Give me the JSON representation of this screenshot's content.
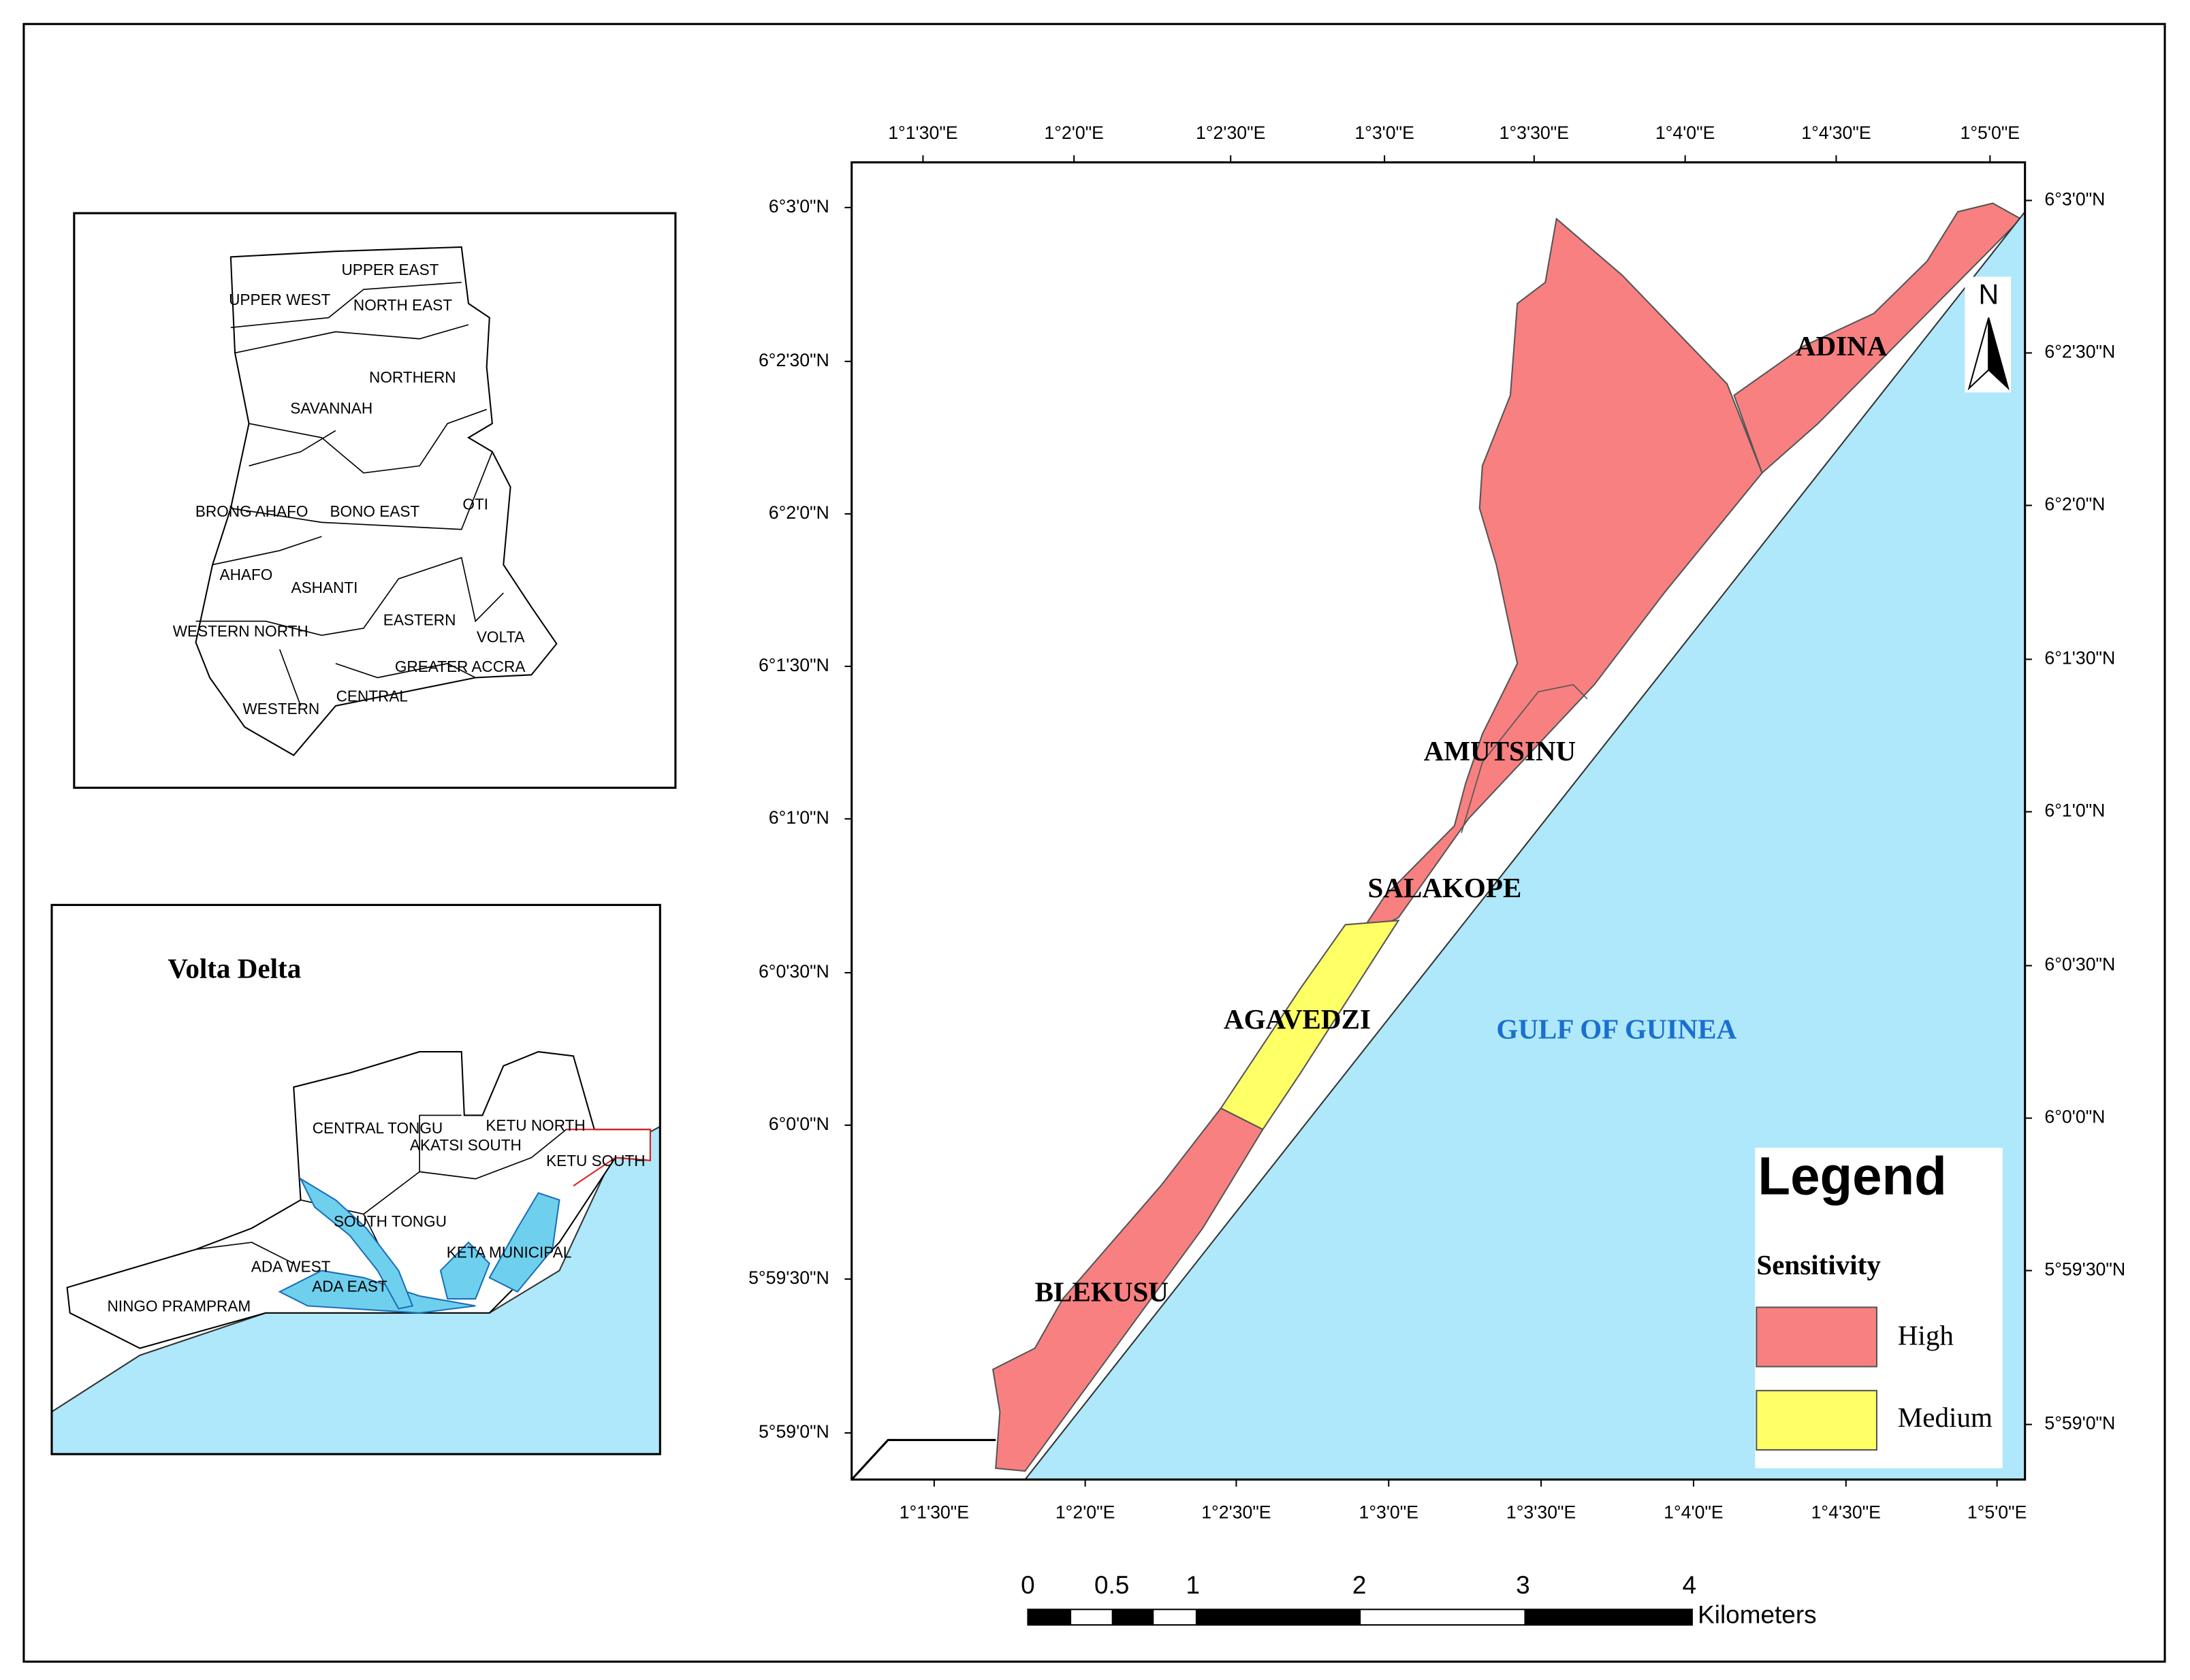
{
  "main_map": {
    "lon_labels": [
      "1°1'30\"E",
      "1°2'0\"E",
      "1°2'30\"E",
      "1°3'0\"E",
      "1°3'30\"E",
      "1°4'0\"E",
      "1°4'30\"E",
      "1°5'0\"E"
    ],
    "lat_labels": [
      "6°3'0\"N",
      "6°2'30\"N",
      "6°2'0\"N",
      "6°1'30\"N",
      "6°1'0\"N",
      "6°0'30\"N",
      "6°0'0\"N",
      "5°59'30\"N",
      "5°59'0\"N"
    ],
    "places": [
      "ADINA",
      "AMUTSINU",
      "SALAKOPE",
      "AGAVEDZI",
      "BLEKUSU"
    ],
    "sea_label": "GULF OF GUINEA",
    "north": "N"
  },
  "legend": {
    "title": "Legend",
    "subtitle": "Sensitivity",
    "items": [
      {
        "label": "High",
        "color": "#f88080"
      },
      {
        "label": "Medium",
        "color": "#ffff66"
      }
    ]
  },
  "ghana_inset": {
    "regions": [
      "UPPER EAST",
      "UPPER WEST",
      "NORTH EAST",
      "NORTHERN",
      "SAVANNAH",
      "BRONG AHAFO",
      "BONO EAST",
      "OTI",
      "AHAFO",
      "ASHANTI",
      "EASTERN",
      "WESTERN NORTH",
      "VOLTA",
      "GREATER ACCRA",
      "CENTRAL",
      "WESTERN"
    ]
  },
  "volta_inset": {
    "title": "Volta Delta",
    "districts": [
      "CENTRAL TONGU",
      "KETU NORTH",
      "AKATSI SOUTH",
      "KETU SOUTH",
      "SOUTH TONGU",
      "KETA MUNICIPAL",
      "ADA WEST",
      "ADA EAST",
      "NINGO PRAMPRAM"
    ]
  },
  "scale_bar": {
    "labels": [
      "0",
      "0.5",
      "1",
      "2",
      "3",
      "4"
    ],
    "unit": "Kilometers"
  }
}
